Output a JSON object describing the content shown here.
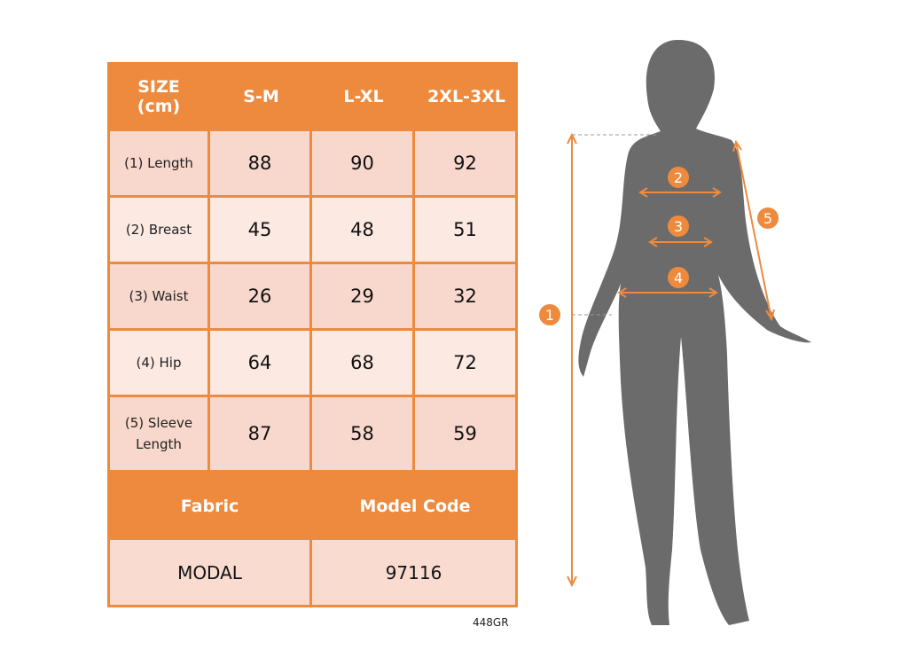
{
  "table": {
    "headers": [
      "SIZE\n(cm)",
      "S-M",
      "L-XL",
      "2XL-3XL"
    ],
    "header_line1": "SIZE",
    "header_line2": "(cm)",
    "rows": [
      {
        "label": "(1) Length",
        "values": [
          "88",
          "90",
          "92"
        ]
      },
      {
        "label": "(2) Breast",
        "values": [
          "45",
          "48",
          "51"
        ]
      },
      {
        "label": "(3) Waist",
        "values": [
          "26",
          "29",
          "32"
        ]
      },
      {
        "label": "(4) Hip",
        "values": [
          "64",
          "68",
          "72"
        ]
      },
      {
        "label_line1": "(5) Sleeve",
        "label_line2": "Length",
        "values": [
          "87",
          "58",
          "59"
        ]
      }
    ],
    "footer_headers": [
      "Fabric",
      "Model Code"
    ],
    "footer_values": [
      "MODAL",
      "97116"
    ]
  },
  "image_code": "448GR",
  "figure": {
    "markers": [
      "1",
      "2",
      "3",
      "4",
      "5"
    ]
  },
  "colors": {
    "accent": "#ee8a3e",
    "row_dark": "#f8d8cc",
    "row_light": "#fce9e2",
    "silhouette": "#6b6b6b"
  }
}
